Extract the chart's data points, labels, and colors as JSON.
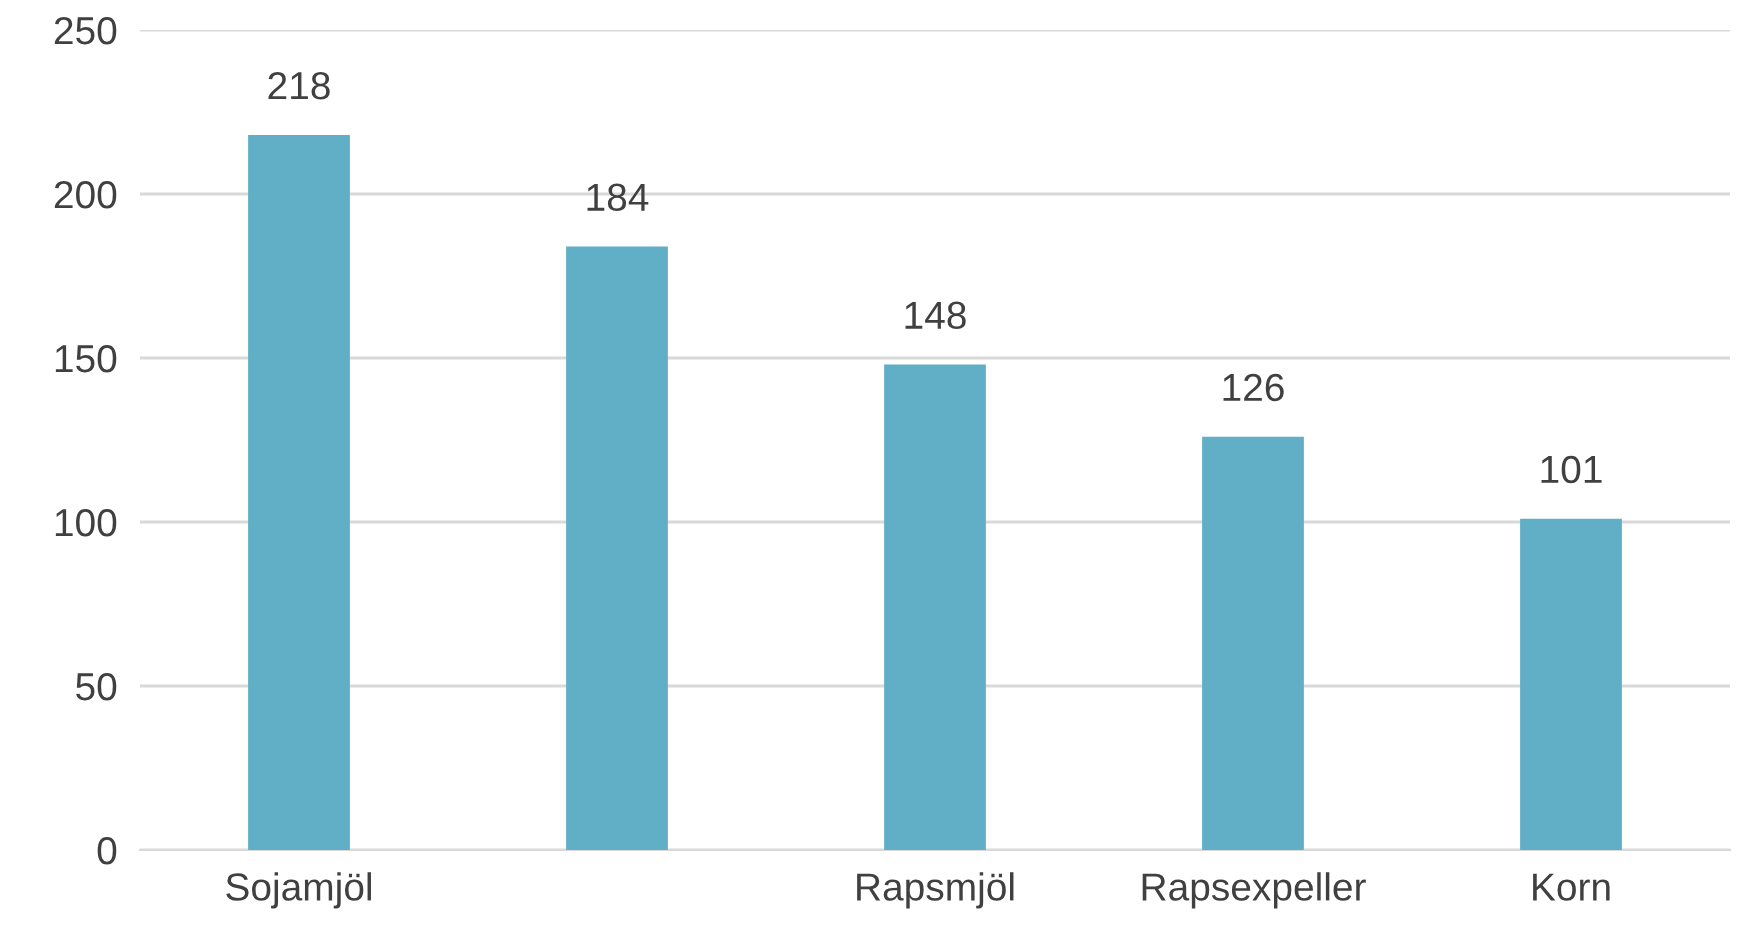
{
  "chart_data": {
    "type": "bar",
    "categories": [
      "Sojamjöl",
      null,
      "Rapsmjöl",
      "Rapsexpeller",
      "Korn"
    ],
    "values": [
      218,
      184,
      148,
      126,
      101
    ],
    "color": "#60afc6",
    "ylim": [
      0,
      250
    ],
    "yticks": [
      0,
      50,
      100,
      150,
      200,
      250
    ],
    "grid": "y",
    "data_labels": true,
    "legend": false
  }
}
